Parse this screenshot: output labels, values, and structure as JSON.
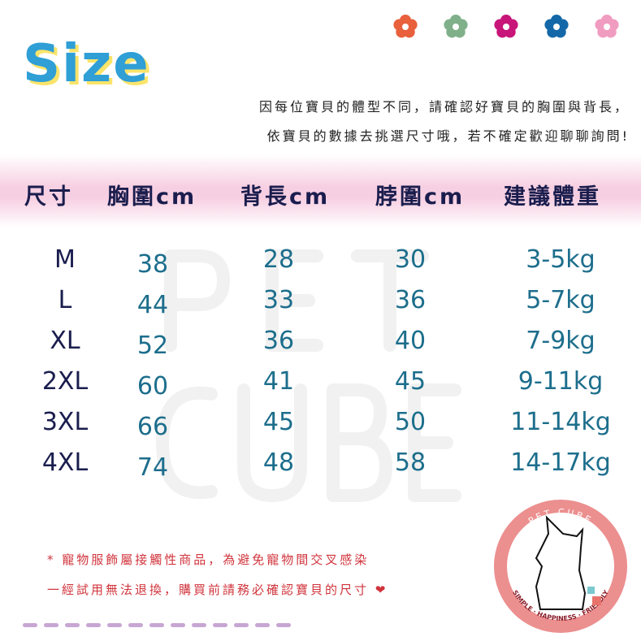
{
  "title": "Size",
  "intro": [
    "因每位寶貝的體型不同，請確認好寶貝的胸圍與背長，",
    "依寶貝的數據去挑選尺寸哦，若不確定歡迎聊聊詢問!"
  ],
  "headers": [
    "尺寸",
    "胸圍cm",
    "背長cm",
    "脖圍cm",
    "建議體重"
  ],
  "rows": [
    [
      "M",
      "38",
      "28",
      "30",
      "3-5kg"
    ],
    [
      "L",
      "44",
      "33",
      "36",
      "5-7kg"
    ],
    [
      "XL",
      "52",
      "36",
      "40",
      "7-9kg"
    ],
    [
      "2XL",
      "60",
      "41",
      "45",
      "9-11kg"
    ],
    [
      "3XL",
      "66",
      "45",
      "50",
      "11-14kg"
    ],
    [
      "4XL",
      "74",
      "48",
      "58",
      "14-17kg"
    ]
  ],
  "watermark": [
    "PET",
    "CUBE"
  ],
  "notes": [
    "* 寵物服飾屬接觸性商品，為避免寵物間交叉感染",
    "一經試用無法退換，購買前請務必確認寶貝的尺寸"
  ],
  "logo": {
    "top_text": "PET CUBE",
    "bottom_text": "SIMPLE · HAPPINESS · FRIENDLY"
  },
  "colors": {
    "flowers": [
      "#e8603c",
      "#7fb08a",
      "#c8157a",
      "#1468a8",
      "#f09cc0"
    ],
    "value": "#1d6e8c",
    "header": "#1a1d4d",
    "note": "#d0343c",
    "logo_ring": "#ec8f8f"
  }
}
